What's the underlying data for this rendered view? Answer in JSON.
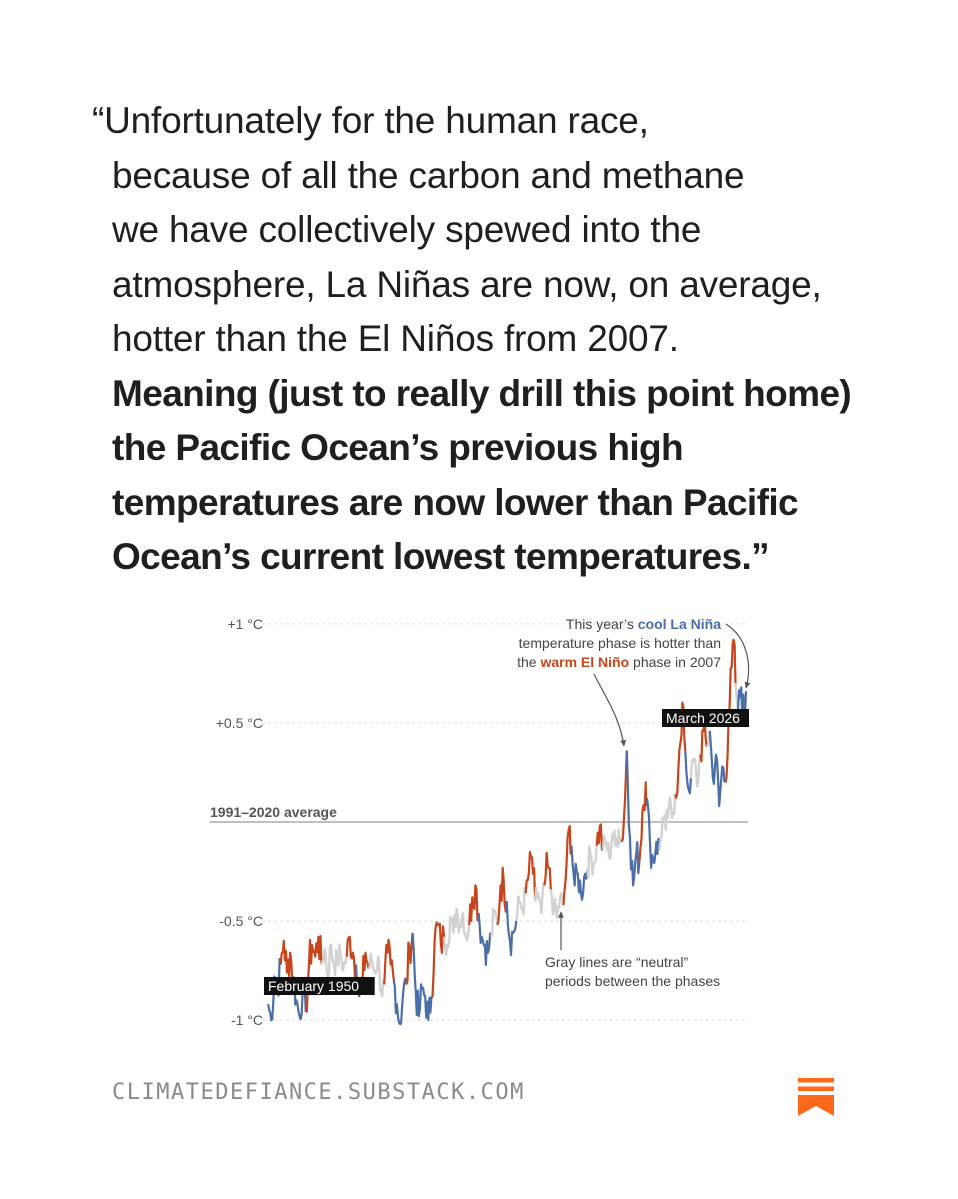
{
  "quote": {
    "lines": [
      "“Unfortunately for the human race,",
      "because of all the carbon and methane",
      "we have collectively spewed into the",
      "atmosphere, La Niñas are now, on average,",
      "hotter than the El Niños from 2007."
    ],
    "bold_lines": [
      "Meaning (just to really drill this point home)",
      "the Pacific Ocean’s previous high",
      "temperatures are now lower than Pacific",
      "Ocean’s current lowest temperatures.”"
    ]
  },
  "chart_data": {
    "type": "line",
    "y_ticks": [
      {
        "value": 1,
        "label": "+1 °C"
      },
      {
        "value": 0.5,
        "label": "+0.5 °C"
      },
      {
        "value": -0.5,
        "label": "-0.5 °C"
      },
      {
        "value": -1,
        "label": "-1 °C"
      }
    ],
    "ylim": [
      -1.05,
      1.05
    ],
    "xlim": [
      1950.08,
      2026.17
    ],
    "baseline": {
      "value": 0,
      "label": "1991–2020 average"
    },
    "start_label": "February 1950",
    "end_label": "March 2026",
    "grid": true,
    "colors": {
      "la_nina": "#4a6ea8",
      "el_nino": "#c8441a",
      "neutral": "#d2d2d2",
      "baseline": "#9a9a9a",
      "grid": "#dedede"
    },
    "series": [
      {
        "phase": "la_nina",
        "x": [
          1950.1,
          1950.6,
          1951.1,
          1951.6,
          1952.1
        ],
        "y": [
          -0.92,
          -1.0,
          -0.78,
          -0.84,
          -0.72
        ]
      },
      {
        "phase": "el_nino",
        "x": [
          1952.1,
          1952.6,
          1953.1,
          1953.6,
          1954.1
        ],
        "y": [
          -0.72,
          -0.6,
          -0.76,
          -0.66,
          -0.78
        ]
      },
      {
        "phase": "la_nina",
        "x": [
          1954.1,
          1954.6,
          1955.1,
          1955.6,
          1956.1
        ],
        "y": [
          -0.78,
          -0.9,
          -0.98,
          -0.85,
          -0.96
        ]
      },
      {
        "phase": "el_nino",
        "x": [
          1956.1,
          1956.6,
          1957.1,
          1957.6,
          1958.1,
          1958.6
        ],
        "y": [
          -0.96,
          -0.72,
          -0.62,
          -0.68,
          -0.58,
          -0.72
        ]
      },
      {
        "phase": "neutral",
        "x": [
          1958.6,
          1959.1,
          1959.6,
          1960.1,
          1960.6,
          1961.1,
          1961.6,
          1962.1,
          1962.6
        ],
        "y": [
          -0.72,
          -0.64,
          -0.78,
          -0.62,
          -0.72,
          -0.7,
          -0.66,
          -0.74,
          -0.68
        ]
      },
      {
        "phase": "el_nino",
        "x": [
          1962.6,
          1963.1,
          1963.6,
          1964.1
        ],
        "y": [
          -0.68,
          -0.58,
          -0.66,
          -0.72
        ]
      },
      {
        "phase": "la_nina",
        "x": [
          1964.1,
          1964.6,
          1965.1
        ],
        "y": [
          -0.72,
          -0.88,
          -0.82
        ]
      },
      {
        "phase": "el_nino",
        "x": [
          1965.1,
          1965.6,
          1966.1
        ],
        "y": [
          -0.82,
          -0.66,
          -0.74
        ]
      },
      {
        "phase": "neutral",
        "x": [
          1966.1,
          1966.6,
          1967.1,
          1967.6,
          1968.1,
          1968.6
        ],
        "y": [
          -0.74,
          -0.7,
          -0.76,
          -0.68,
          -0.86,
          -0.82
        ]
      },
      {
        "phase": "el_nino",
        "x": [
          1968.6,
          1969.1,
          1969.6,
          1970.1
        ],
        "y": [
          -0.82,
          -0.66,
          -0.72,
          -0.8
        ]
      },
      {
        "phase": "la_nina",
        "x": [
          1970.1,
          1970.6,
          1971.1,
          1971.6,
          1972.1
        ],
        "y": [
          -0.8,
          -0.92,
          -1.02,
          -0.86,
          -0.82
        ]
      },
      {
        "phase": "el_nino",
        "x": [
          1972.1,
          1972.6,
          1973.1
        ],
        "y": [
          -0.82,
          -0.64,
          -0.56
        ]
      },
      {
        "phase": "la_nina",
        "x": [
          1973.1,
          1973.6,
          1974.1,
          1974.6,
          1975.1,
          1975.6,
          1976.1
        ],
        "y": [
          -0.56,
          -0.86,
          -0.98,
          -0.84,
          -0.88,
          -1.0,
          -0.88
        ]
      },
      {
        "phase": "el_nino",
        "x": [
          1976.1,
          1976.6,
          1977.1,
          1977.6,
          1978.1
        ],
        "y": [
          -0.88,
          -0.6,
          -0.52,
          -0.62,
          -0.58
        ]
      },
      {
        "phase": "neutral",
        "x": [
          1978.1,
          1978.6,
          1979.1,
          1979.6,
          1980.1,
          1980.6,
          1981.1,
          1981.6,
          1982.1
        ],
        "y": [
          -0.58,
          -0.62,
          -0.48,
          -0.56,
          -0.44,
          -0.52,
          -0.46,
          -0.58,
          -0.52
        ]
      },
      {
        "phase": "el_nino",
        "x": [
          1982.1,
          1982.6,
          1983.1,
          1983.6
        ],
        "y": [
          -0.52,
          -0.38,
          -0.32,
          -0.46
        ]
      },
      {
        "phase": "la_nina",
        "x": [
          1983.6,
          1984.1,
          1984.6,
          1985.1,
          1985.6
        ],
        "y": [
          -0.46,
          -0.58,
          -0.62,
          -0.66,
          -0.58
        ]
      },
      {
        "phase": "neutral",
        "x": [
          1985.6,
          1986.1,
          1986.6
        ],
        "y": [
          -0.58,
          -0.46,
          -0.52
        ]
      },
      {
        "phase": "el_nino",
        "x": [
          1986.6,
          1987.1,
          1987.6,
          1988.1
        ],
        "y": [
          -0.52,
          -0.32,
          -0.3,
          -0.4
        ]
      },
      {
        "phase": "la_nina",
        "x": [
          1988.1,
          1988.6,
          1989.1,
          1989.6
        ],
        "y": [
          -0.4,
          -0.6,
          -0.56,
          -0.5
        ]
      },
      {
        "phase": "neutral",
        "x": [
          1989.6,
          1990.1,
          1990.6,
          1991.1
        ],
        "y": [
          -0.5,
          -0.4,
          -0.44,
          -0.36
        ]
      },
      {
        "phase": "el_nino",
        "x": [
          1991.1,
          1991.6,
          1992.1,
          1992.6
        ],
        "y": [
          -0.36,
          -0.26,
          -0.18,
          -0.4
        ]
      },
      {
        "phase": "neutral",
        "x": [
          1992.6,
          1993.1,
          1993.6,
          1994.1
        ],
        "y": [
          -0.4,
          -0.36,
          -0.46,
          -0.32
        ]
      },
      {
        "phase": "el_nino",
        "x": [
          1994.1,
          1994.6,
          1995.1
        ],
        "y": [
          -0.32,
          -0.22,
          -0.34
        ]
      },
      {
        "phase": "neutral",
        "x": [
          1995.1,
          1995.6,
          1996.1,
          1996.6,
          1997.1
        ],
        "y": [
          -0.34,
          -0.44,
          -0.48,
          -0.38,
          -0.42
        ]
      },
      {
        "phase": "el_nino",
        "x": [
          1997.1,
          1997.6,
          1998.1,
          1998.4
        ],
        "y": [
          -0.42,
          -0.22,
          -0.02,
          -0.12
        ]
      },
      {
        "phase": "la_nina",
        "x": [
          1998.4,
          1998.9,
          1999.4,
          1999.9,
          2000.4,
          2000.9
        ],
        "y": [
          -0.12,
          -0.32,
          -0.26,
          -0.36,
          -0.28,
          -0.24
        ]
      },
      {
        "phase": "neutral",
        "x": [
          2000.9,
          2001.4,
          2001.9,
          2002.4
        ],
        "y": [
          -0.24,
          -0.16,
          -0.22,
          -0.12
        ]
      },
      {
        "phase": "el_nino",
        "x": [
          2002.4,
          2002.9,
          2003.4
        ],
        "y": [
          -0.12,
          -0.02,
          -0.14
        ]
      },
      {
        "phase": "neutral",
        "x": [
          2003.4,
          2003.9,
          2004.4,
          2004.9,
          2005.4,
          2005.9,
          2006.4
        ],
        "y": [
          -0.14,
          -0.1,
          -0.18,
          -0.06,
          -0.12,
          -0.04,
          -0.1
        ]
      },
      {
        "phase": "el_nino",
        "x": [
          2006.4,
          2006.9,
          2007.2
        ],
        "y": [
          -0.1,
          0.1,
          0.36
        ]
      },
      {
        "phase": "la_nina",
        "x": [
          2007.2,
          2007.7,
          2008.2,
          2008.7,
          2009.2
        ],
        "y": [
          0.36,
          -0.08,
          -0.32,
          -0.16,
          -0.2
        ]
      },
      {
        "phase": "el_nino",
        "x": [
          2009.2,
          2009.7,
          2010.2,
          2010.4
        ],
        "y": [
          -0.2,
          0.06,
          0.2,
          0.12
        ]
      },
      {
        "phase": "la_nina",
        "x": [
          2010.4,
          2010.9,
          2011.4,
          2011.9,
          2012.4
        ],
        "y": [
          0.12,
          -0.12,
          -0.2,
          -0.1,
          -0.14
        ]
      },
      {
        "phase": "neutral",
        "x": [
          2012.4,
          2012.9,
          2013.4,
          2013.9,
          2014.4,
          2014.9
        ],
        "y": [
          -0.14,
          0.02,
          -0.04,
          0.08,
          0.02,
          0.14
        ]
      },
      {
        "phase": "el_nino",
        "x": [
          2014.9,
          2015.4,
          2015.9,
          2016.2,
          2016.5
        ],
        "y": [
          0.14,
          0.26,
          0.44,
          0.58,
          0.36
        ]
      },
      {
        "phase": "la_nina",
        "x": [
          2016.5,
          2016.9,
          2017.4
        ],
        "y": [
          0.36,
          0.18,
          0.22
        ]
      },
      {
        "phase": "neutral",
        "x": [
          2017.4,
          2017.9,
          2018.4,
          2018.9
        ],
        "y": [
          0.22,
          0.32,
          0.18,
          0.34
        ]
      },
      {
        "phase": "el_nino",
        "x": [
          2018.9,
          2019.4,
          2019.9
        ],
        "y": [
          0.34,
          0.46,
          0.38
        ]
      },
      {
        "phase": "neutral",
        "x": [
          2019.9,
          2020.4
        ],
        "y": [
          0.38,
          0.46
        ]
      },
      {
        "phase": "la_nina",
        "x": [
          2020.4,
          2020.9,
          2021.4,
          2021.9,
          2022.4,
          2022.9
        ],
        "y": [
          0.46,
          0.22,
          0.34,
          0.08,
          0.28,
          0.2
        ]
      },
      {
        "phase": "el_nino",
        "x": [
          2022.9,
          2023.4,
          2023.9,
          2024.2,
          2024.5
        ],
        "y": [
          0.2,
          0.52,
          0.78,
          0.92,
          0.7
        ]
      },
      {
        "phase": "neutral",
        "x": [
          2024.5,
          2024.9
        ],
        "y": [
          0.7,
          0.56
        ]
      },
      {
        "phase": "la_nina",
        "x": [
          2024.9,
          2025.4,
          2025.9,
          2026.17
        ],
        "y": [
          0.56,
          0.68,
          0.52,
          0.66
        ]
      }
    ],
    "annotations": {
      "top": {
        "lines": [
          [
            {
              "text": "This year’s "
            },
            {
              "text": "cool La Niña",
              "style": "la_nina"
            }
          ],
          [
            {
              "text": "temperature phase is hotter than"
            }
          ],
          [
            {
              "text": "the "
            },
            {
              "text": "warm El Niño",
              "style": "el_nino"
            },
            {
              "text": " phase in 2007"
            }
          ]
        ]
      },
      "bottom": {
        "lines": [
          "Gray lines are “neutral”",
          "periods between the phases"
        ]
      }
    }
  },
  "footer": {
    "url": "CLIMATEDEFIANCE.SUBSTACK.COM",
    "logo": "substack-logo-icon",
    "logo_color": "#ff6719"
  }
}
